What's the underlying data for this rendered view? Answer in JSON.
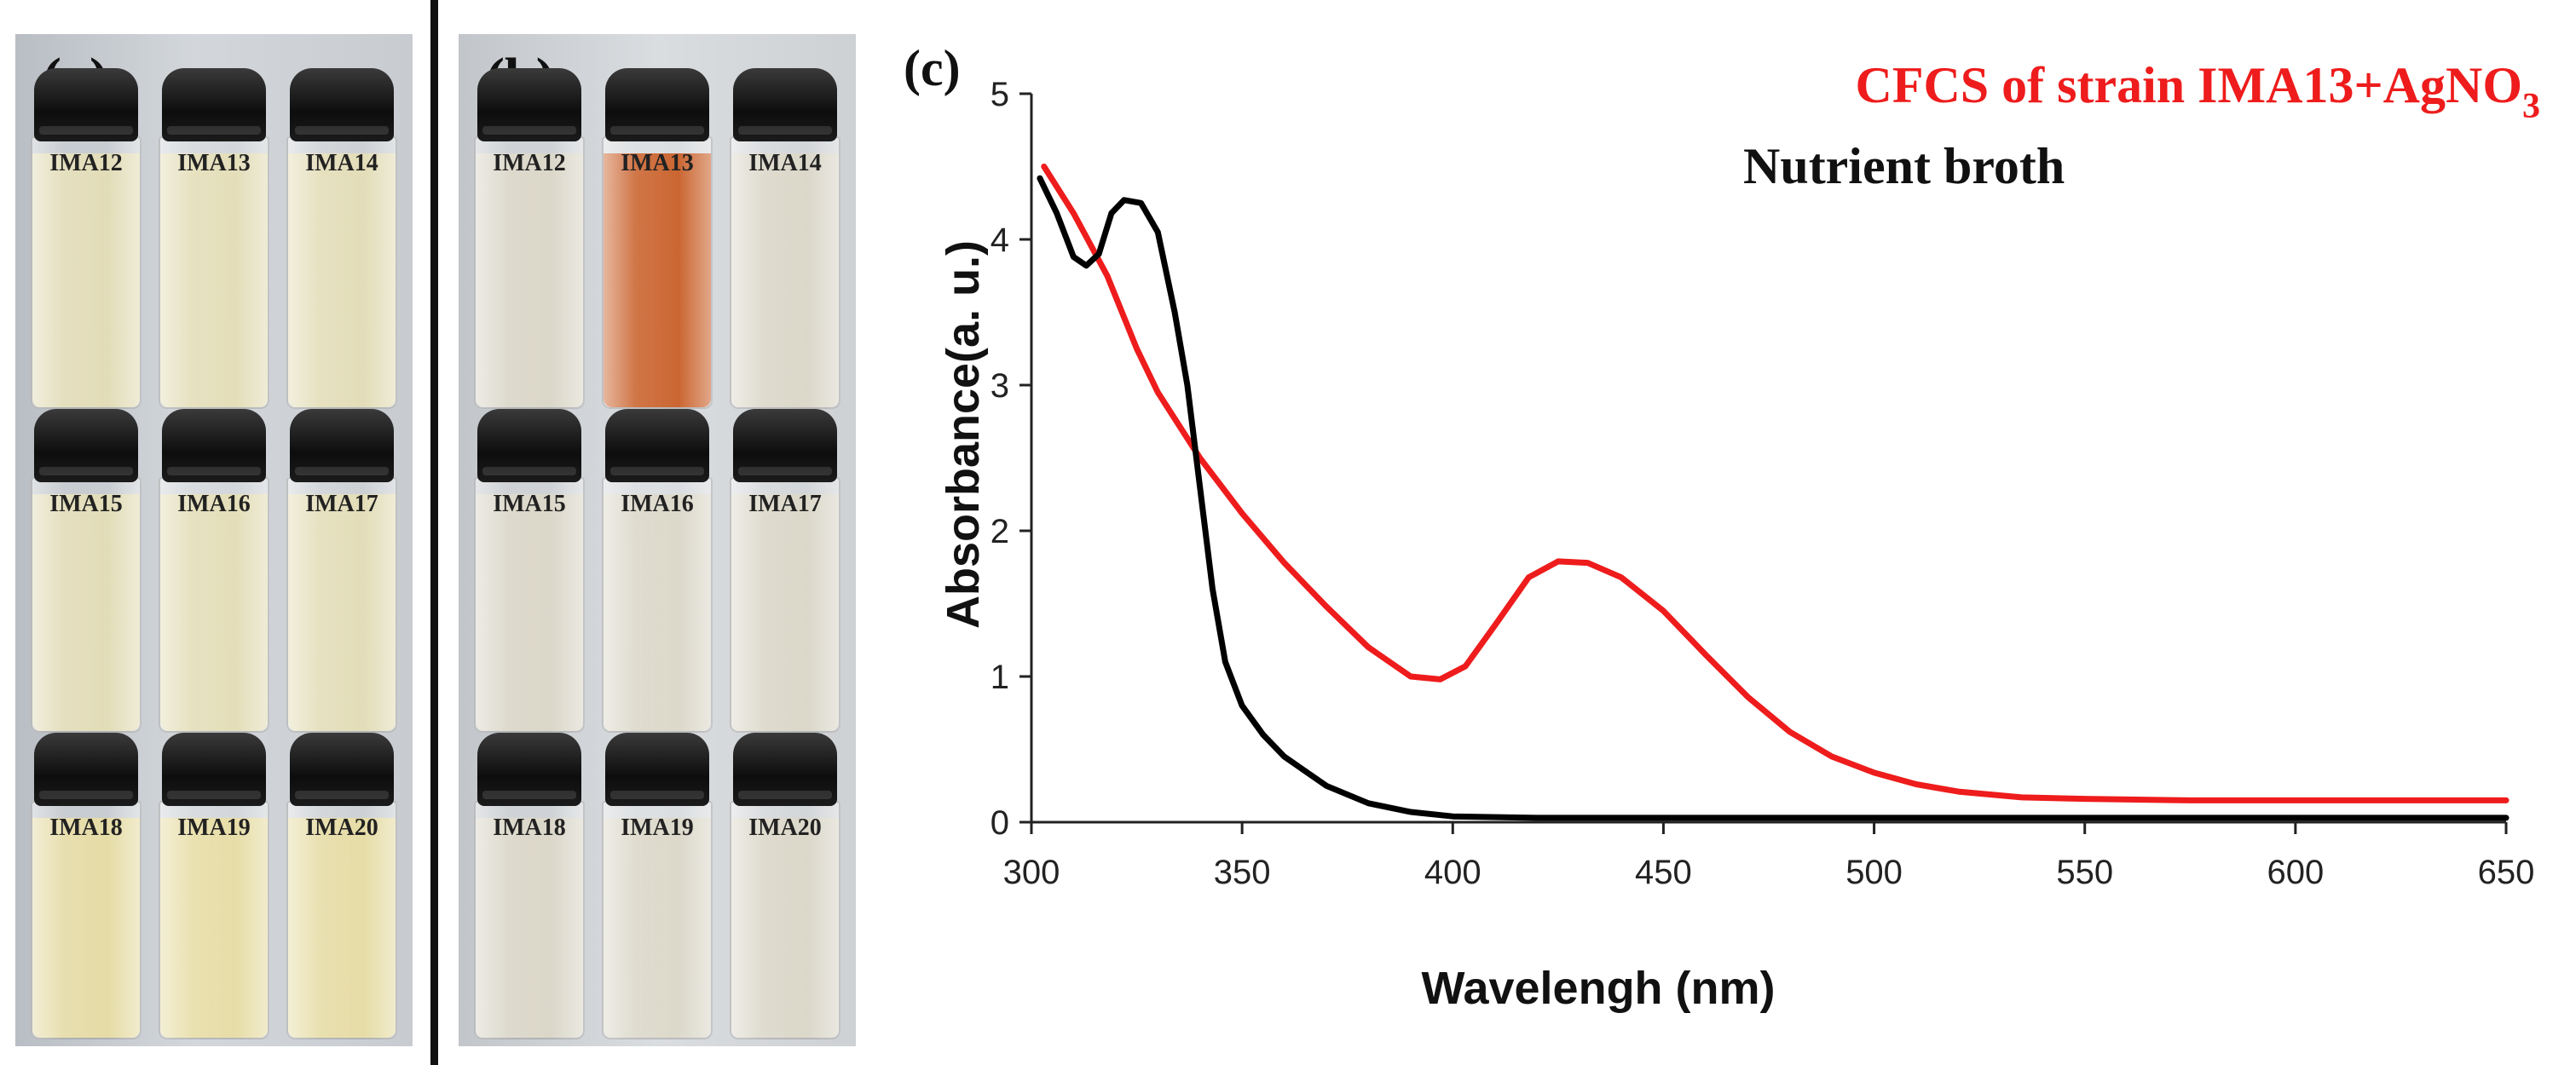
{
  "panels": {
    "a": {
      "label": "(a)",
      "rows": [
        [
          "IMA12",
          "IMA13",
          "IMA14"
        ],
        [
          "IMA15",
          "IMA16",
          "IMA17"
        ],
        [
          "IMA18",
          "IMA19",
          "IMA20"
        ]
      ]
    },
    "b": {
      "label": "(b)",
      "rows": [
        [
          "IMA12",
          "IMA13",
          "IMA14"
        ],
        [
          "IMA15",
          "IMA16",
          "IMA17"
        ],
        [
          "IMA18",
          "IMA19",
          "IMA20"
        ]
      ]
    }
  },
  "colors": {
    "liquid_a": "#e6deb0",
    "liquid_a_bottom": "#eadd9a",
    "liquid_b": "#dbd6c4",
    "liquid_b_highlight": "#c8581e",
    "series_red": "#ee1c1c",
    "series_black": "#000000"
  },
  "chart_data": {
    "panel_label": "(c)",
    "type": "line",
    "title": "",
    "xlabel": "Wavelengh (nm)",
    "ylabel": "Absorbance(a. u.)",
    "xlim": [
      300,
      650
    ],
    "ylim": [
      0,
      5
    ],
    "xticks": [
      300,
      350,
      400,
      450,
      500,
      550,
      600,
      650
    ],
    "yticks": [
      0,
      1,
      2,
      3,
      4,
      5
    ],
    "grid": false,
    "legend_position": "top-right",
    "series": [
      {
        "name": "CFCS of strain IMA13+AgNO",
        "name_subscript": "3",
        "color": "#ee1c1c",
        "points": [
          [
            303,
            4.5
          ],
          [
            310,
            4.18
          ],
          [
            318,
            3.75
          ],
          [
            325,
            3.25
          ],
          [
            330,
            2.95
          ],
          [
            340,
            2.5
          ],
          [
            350,
            2.12
          ],
          [
            360,
            1.78
          ],
          [
            370,
            1.48
          ],
          [
            380,
            1.2
          ],
          [
            390,
            1.0
          ],
          [
            397,
            0.98
          ],
          [
            403,
            1.07
          ],
          [
            410,
            1.35
          ],
          [
            418,
            1.68
          ],
          [
            425,
            1.79
          ],
          [
            432,
            1.78
          ],
          [
            440,
            1.68
          ],
          [
            450,
            1.45
          ],
          [
            460,
            1.15
          ],
          [
            470,
            0.86
          ],
          [
            480,
            0.62
          ],
          [
            490,
            0.45
          ],
          [
            500,
            0.34
          ],
          [
            510,
            0.26
          ],
          [
            520,
            0.21
          ],
          [
            535,
            0.17
          ],
          [
            550,
            0.16
          ],
          [
            575,
            0.15
          ],
          [
            600,
            0.15
          ],
          [
            625,
            0.15
          ],
          [
            650,
            0.15
          ]
        ]
      },
      {
        "name": "Nutrient broth",
        "color": "#000000",
        "points": [
          [
            302,
            4.42
          ],
          [
            306,
            4.18
          ],
          [
            310,
            3.88
          ],
          [
            313,
            3.82
          ],
          [
            316,
            3.9
          ],
          [
            319,
            4.18
          ],
          [
            322,
            4.27
          ],
          [
            326,
            4.25
          ],
          [
            330,
            4.05
          ],
          [
            334,
            3.5
          ],
          [
            337,
            3.0
          ],
          [
            340,
            2.3
          ],
          [
            343,
            1.6
          ],
          [
            346,
            1.1
          ],
          [
            350,
            0.8
          ],
          [
            355,
            0.6
          ],
          [
            360,
            0.45
          ],
          [
            370,
            0.25
          ],
          [
            380,
            0.13
          ],
          [
            390,
            0.07
          ],
          [
            400,
            0.04
          ],
          [
            420,
            0.03
          ],
          [
            450,
            0.03
          ],
          [
            500,
            0.03
          ],
          [
            550,
            0.03
          ],
          [
            600,
            0.03
          ],
          [
            650,
            0.03
          ]
        ]
      }
    ]
  }
}
